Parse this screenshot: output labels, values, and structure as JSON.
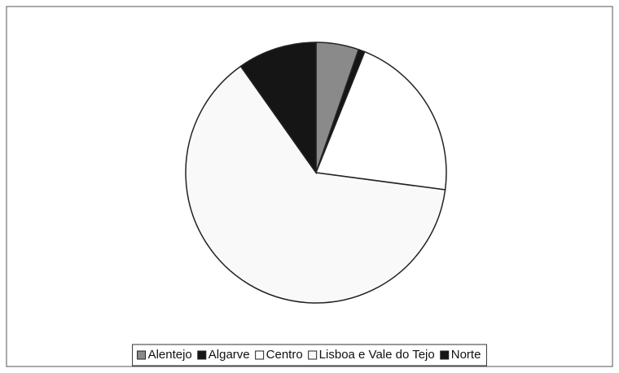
{
  "chart_data": {
    "type": "pie",
    "categories": [
      "Alentejo",
      "Algarve",
      "Centro",
      "Lisboa e Vale do Tejo",
      "Norte"
    ],
    "values": [
      5.3,
      0.8,
      21.0,
      63.1,
      9.8
    ],
    "colors": [
      "#8a8a8a",
      "#151515",
      "#ffffff",
      "#f9f9f9",
      "#151515"
    ],
    "legend": "bottom"
  }
}
